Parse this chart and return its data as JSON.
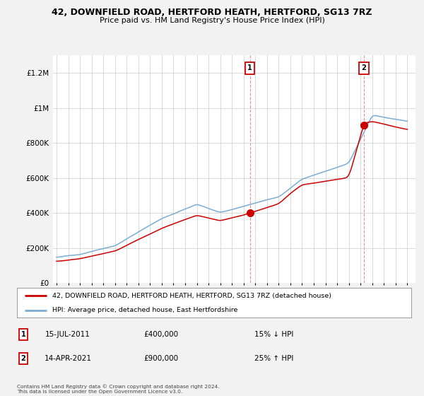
{
  "title": "42, DOWNFIELD ROAD, HERTFORD HEATH, HERTFORD, SG13 7RZ",
  "subtitle": "Price paid vs. HM Land Registry's House Price Index (HPI)",
  "ylim": [
    0,
    1300000
  ],
  "yticks": [
    0,
    200000,
    400000,
    600000,
    800000,
    1000000,
    1200000
  ],
  "ytick_labels": [
    "£0",
    "£200K",
    "£400K",
    "£600K",
    "£800K",
    "£1M",
    "£1.2M"
  ],
  "sale1_year": 2011.54,
  "sale1_price": 400000,
  "sale2_year": 2021.29,
  "sale2_price": 900000,
  "red_color": "#cc0000",
  "blue_color": "#7aadd4",
  "legend_red_label": "42, DOWNFIELD ROAD, HERTFORD HEATH, HERTFORD, SG13 7RZ (detached house)",
  "legend_blue_label": "HPI: Average price, detached house, East Hertfordshire",
  "sale1_label": "1",
  "sale2_label": "2",
  "annot1_date": "15-JUL-2011",
  "annot1_price": "£400,000",
  "annot1_hpi": "15% ↓ HPI",
  "annot2_date": "14-APR-2021",
  "annot2_price": "£900,000",
  "annot2_hpi": "25% ↑ HPI",
  "copyright_text": "Contains HM Land Registry data © Crown copyright and database right 2024.\nThis data is licensed under the Open Government Licence v3.0.",
  "bg_color": "#f2f2f2",
  "plot_bg_color": "#ffffff",
  "grid_color": "#cccccc",
  "vline_color": "#cc0000"
}
